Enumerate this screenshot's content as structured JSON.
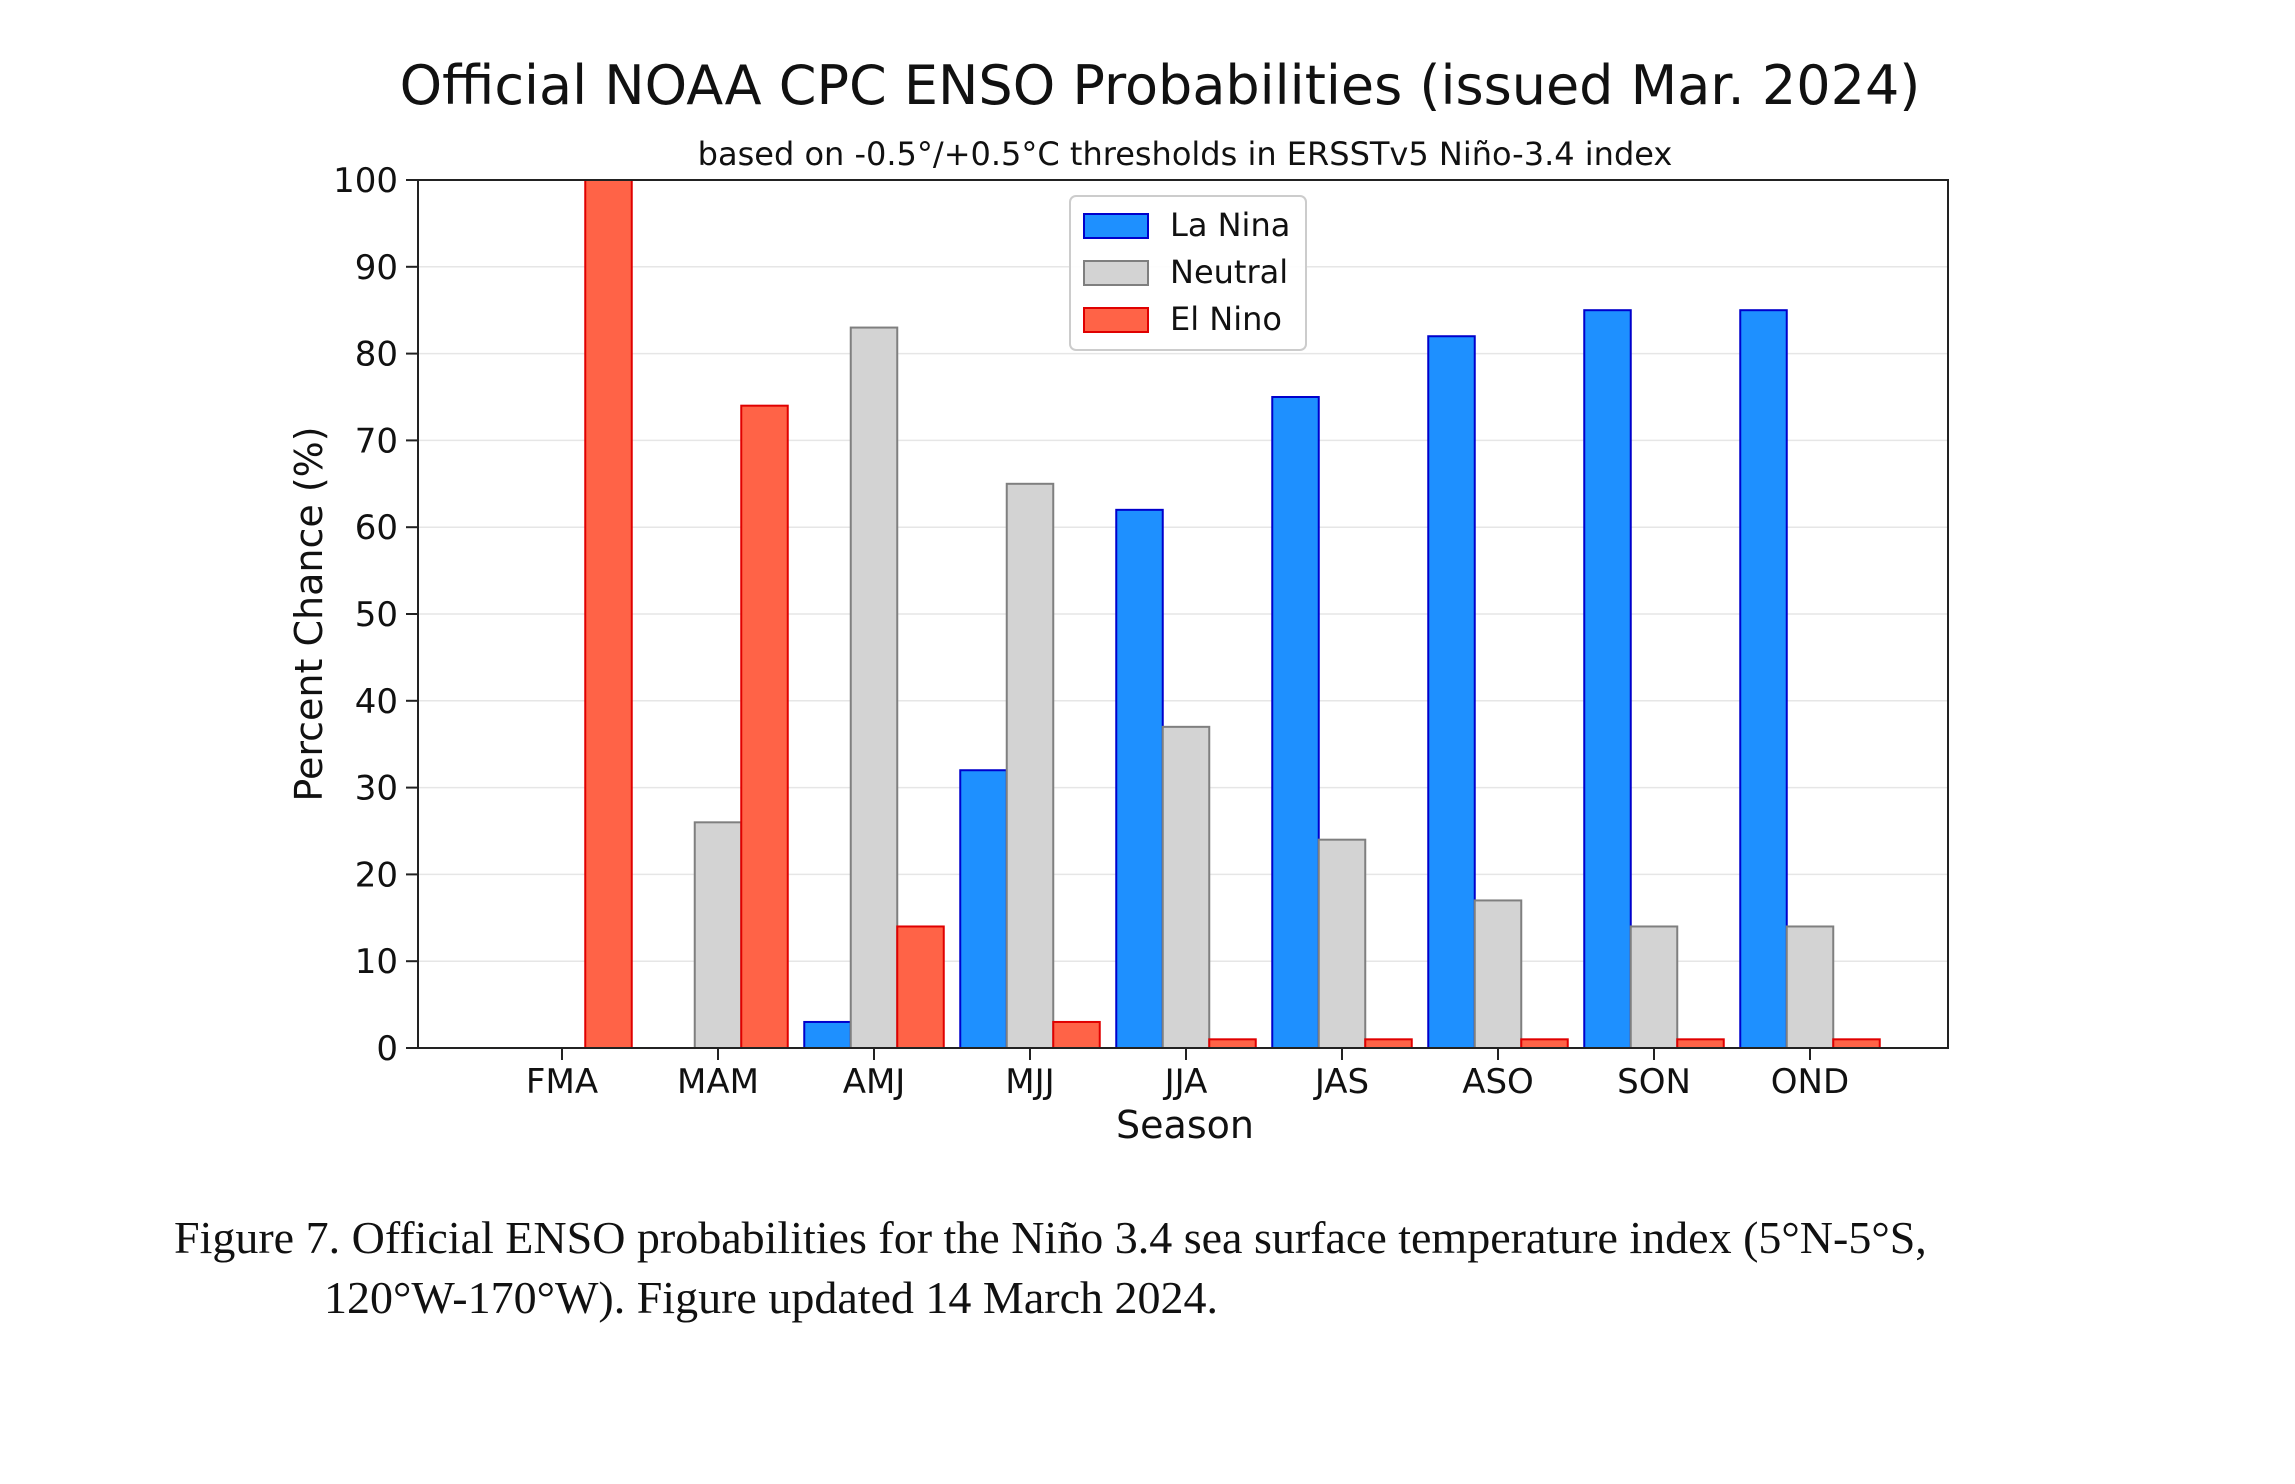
{
  "chart_data": {
    "type": "bar",
    "title": "Official NOAA CPC ENSO Probabilities (issued Mar. 2024)",
    "subtitle": "based on -0.5°/+0.5°C thresholds in ERSSTv5 Niño-3.4 index",
    "xlabel": "Season",
    "ylabel": "Percent Chance (%)",
    "ylim": [
      0,
      100
    ],
    "yticks": [
      0,
      10,
      20,
      30,
      40,
      50,
      60,
      70,
      80,
      90,
      100
    ],
    "grid": true,
    "legend_position": "top-center",
    "categories": [
      "FMA",
      "MAM",
      "AMJ",
      "MJJ",
      "JJA",
      "JAS",
      "ASO",
      "SON",
      "OND"
    ],
    "series": [
      {
        "name": "La Nina",
        "color": "#1e90ff",
        "edge": "#0000cc",
        "values": [
          0,
          0,
          3,
          32,
          62,
          75,
          82,
          85,
          85
        ]
      },
      {
        "name": "Neutral",
        "color": "#d3d3d3",
        "edge": "#7f7f7f",
        "values": [
          0,
          26,
          83,
          65,
          37,
          24,
          17,
          14,
          14
        ]
      },
      {
        "name": "El Nino",
        "color": "#ff6347",
        "edge": "#e00000",
        "values": [
          100,
          74,
          14,
          3,
          1,
          1,
          1,
          1,
          1
        ]
      }
    ]
  },
  "caption": {
    "line1": "Figure 7. Official ENSO probabilities for the Niño 3.4 sea surface temperature index (5°N-5°S,",
    "line2": "120°W-170°W). Figure updated 14 March 2024."
  }
}
